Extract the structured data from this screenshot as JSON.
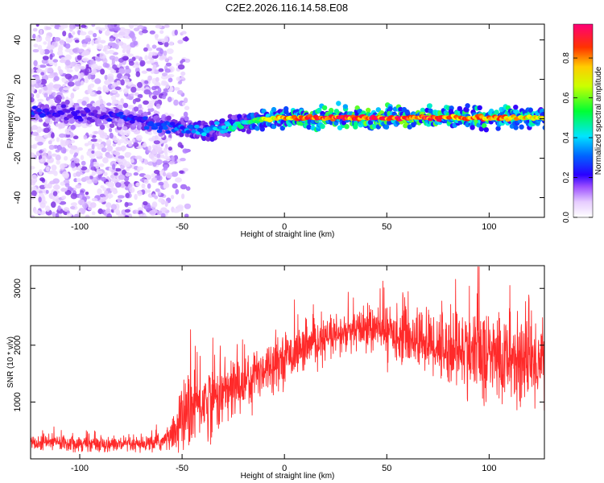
{
  "title": "C2E2.2026.116.14.58.E08",
  "colors": {
    "snr_line": "#ff2a2a",
    "colormap": [
      "#ffffff",
      "#e6ccff",
      "#b27fff",
      "#7a2be0",
      "#2a00ff",
      "#0066ff",
      "#00e5ff",
      "#00ff66",
      "#aaff00",
      "#ffff00",
      "#ff9900",
      "#ff2200",
      "#ff0077"
    ]
  },
  "chart_data": [
    {
      "type": "heatmap",
      "title": "C2E2.2026.116.14.58.E08",
      "xlabel": "Height of straight line (km)",
      "ylabel": "Frequency (Hz)",
      "xlim": [
        -124,
        127
      ],
      "ylim": [
        -50,
        48
      ],
      "xticks": [
        -100,
        -50,
        0,
        50,
        100
      ],
      "yticks": [
        -40,
        -20,
        0,
        20,
        40
      ],
      "colorbar": {
        "label": "Normalized spectral amplitude",
        "range": [
          0,
          0.97
        ],
        "ticks": [
          0.0,
          0.2,
          0.4,
          0.6,
          0.8
        ]
      },
      "ridge": {
        "x": [
          -124,
          -110,
          -100,
          -90,
          -80,
          -70,
          -60,
          -50,
          -40,
          -30,
          -20,
          -10,
          0,
          20,
          50,
          80,
          100,
          127
        ],
        "frequency": [
          4,
          3,
          2,
          1.5,
          1,
          -1,
          -3,
          -5,
          -6,
          -5,
          -2,
          0,
          0.5,
          0.5,
          0.5,
          0.5,
          0.5,
          0.5
        ],
        "amplitude": [
          0.35,
          0.3,
          0.3,
          0.3,
          0.35,
          0.35,
          0.4,
          0.4,
          0.45,
          0.5,
          0.55,
          0.7,
          0.82,
          0.9,
          0.92,
          0.9,
          0.85,
          0.75
        ]
      },
      "noise_region": {
        "x_range": [
          -124,
          -55
        ],
        "amplitude_range": [
          0.05,
          0.2
        ]
      }
    },
    {
      "type": "line",
      "xlabel": "Height of straight line (km)",
      "ylabel": "SNR (10 * v/v)",
      "xlim": [
        -124,
        127
      ],
      "ylim": [
        0,
        3400
      ],
      "xticks": [
        -100,
        -50,
        0,
        50,
        100
      ],
      "yticks": [
        1000,
        2000,
        3000
      ],
      "envelope": {
        "x": [
          -124,
          -100,
          -80,
          -70,
          -60,
          -55,
          -50,
          -45,
          -40,
          -30,
          -20,
          -10,
          0,
          10,
          20,
          30,
          40,
          50,
          60,
          70,
          80,
          90,
          100,
          110,
          120,
          127
        ],
        "mean": [
          300,
          280,
          250,
          240,
          300,
          400,
          700,
          900,
          1000,
          1150,
          1350,
          1600,
          1800,
          1950,
          2100,
          2200,
          2300,
          2250,
          2150,
          2050,
          1950,
          1900,
          1800,
          1750,
          1700,
          1750
        ],
        "spread": [
          150,
          140,
          130,
          130,
          160,
          250,
          600,
          700,
          650,
          600,
          550,
          450,
          400,
          380,
          350,
          350,
          380,
          420,
          480,
          550,
          650,
          750,
          800,
          800,
          800,
          700
        ]
      }
    }
  ]
}
